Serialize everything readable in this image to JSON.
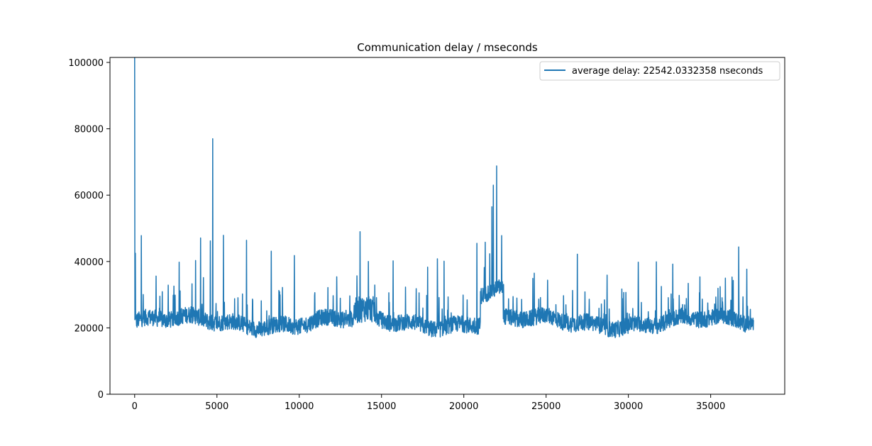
{
  "chart_data": {
    "type": "line",
    "title": "Communication delay / mseconds",
    "xlabel": "",
    "ylabel": "",
    "xlim": [
      -1500,
      39500
    ],
    "ylim": [
      0,
      101500
    ],
    "xticks": [
      0,
      5000,
      10000,
      15000,
      20000,
      25000,
      30000,
      35000
    ],
    "xtick_labels": [
      "0",
      "5000",
      "10000",
      "15000",
      "20000",
      "25000",
      "30000",
      "35000"
    ],
    "yticks": [
      0,
      20000,
      40000,
      60000,
      80000,
      100000
    ],
    "ytick_labels": [
      "0",
      "20000",
      "40000",
      "60000",
      "80000",
      "100000"
    ],
    "grid": false,
    "legend_position": "upper right",
    "series": [
      {
        "name": "average delay: 22542.0332358 nseconds",
        "color": "#1f77b4",
        "x_range": [
          0,
          37600
        ],
        "baseline": 21000,
        "noise_amplitude": 5000,
        "spikes": [
          {
            "x": 0,
            "y": 101500
          },
          {
            "x": 50,
            "y": 42500
          },
          {
            "x": 400,
            "y": 47800
          },
          {
            "x": 1300,
            "y": 35600
          },
          {
            "x": 2700,
            "y": 39800
          },
          {
            "x": 3700,
            "y": 40300
          },
          {
            "x": 4000,
            "y": 47100
          },
          {
            "x": 4600,
            "y": 46200
          },
          {
            "x": 4750,
            "y": 77000
          },
          {
            "x": 5400,
            "y": 47900
          },
          {
            "x": 6800,
            "y": 46400
          },
          {
            "x": 8300,
            "y": 43100
          },
          {
            "x": 9700,
            "y": 41800
          },
          {
            "x": 13700,
            "y": 49000
          },
          {
            "x": 14200,
            "y": 40000
          },
          {
            "x": 15700,
            "y": 40200
          },
          {
            "x": 17800,
            "y": 38300
          },
          {
            "x": 18400,
            "y": 40800
          },
          {
            "x": 18800,
            "y": 40100
          },
          {
            "x": 20800,
            "y": 45500
          },
          {
            "x": 21300,
            "y": 45800
          },
          {
            "x": 21700,
            "y": 56500
          },
          {
            "x": 21800,
            "y": 63000
          },
          {
            "x": 22000,
            "y": 68800
          },
          {
            "x": 22300,
            "y": 47800
          },
          {
            "x": 24200,
            "y": 34900
          },
          {
            "x": 26900,
            "y": 42200
          },
          {
            "x": 28700,
            "y": 35900
          },
          {
            "x": 30600,
            "y": 39800
          },
          {
            "x": 31700,
            "y": 39900
          },
          {
            "x": 32700,
            "y": 39200
          },
          {
            "x": 35900,
            "y": 35000
          },
          {
            "x": 36700,
            "y": 44400
          },
          {
            "x": 37200,
            "y": 37700
          }
        ]
      }
    ]
  }
}
